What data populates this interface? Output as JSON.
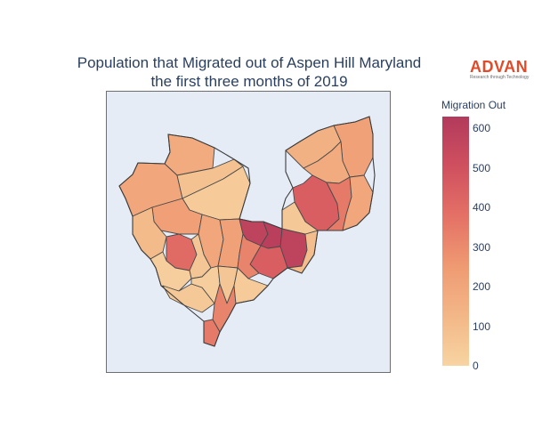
{
  "chart": {
    "title_line1": "Population that Migrated out of Aspen Hill Maryland",
    "title_line2": "the first three months of 2019"
  },
  "logo": {
    "name": "ADVAN",
    "tagline": "Research through Technology"
  },
  "colorbar": {
    "title": "Migration Out",
    "ticks": [
      "0",
      "100",
      "200",
      "300",
      "400",
      "500",
      "600"
    ],
    "range": [
      0,
      630
    ],
    "colors": [
      "#f7d4a2",
      "#f3b787",
      "#ef9a72",
      "#e47166",
      "#cf505f",
      "#b23a5c"
    ]
  },
  "chart_data": {
    "type": "choropleth",
    "title": "Population that Migrated out of Aspen Hill Maryland the first three months of 2019",
    "colorbar_title": "Migration Out",
    "value_range": [
      0,
      630
    ],
    "regions": [
      {
        "id": "nw-1",
        "value": 180
      },
      {
        "id": "nw-2",
        "value": 200
      },
      {
        "id": "north-mid",
        "value": 80
      },
      {
        "id": "center-n",
        "value": 40
      },
      {
        "id": "west-1",
        "value": 230
      },
      {
        "id": "west-2",
        "value": 110
      },
      {
        "id": "w-center",
        "value": 200
      },
      {
        "id": "west-3",
        "value": 400
      },
      {
        "id": "center",
        "value": 60
      },
      {
        "id": "center-2",
        "value": 30
      },
      {
        "id": "c-mid",
        "value": 220
      },
      {
        "id": "c-core-1",
        "value": 580
      },
      {
        "id": "c-core-2",
        "value": 600
      },
      {
        "id": "c-core-3",
        "value": 580
      },
      {
        "id": "c-east",
        "value": 450
      },
      {
        "id": "c-south",
        "value": 320
      },
      {
        "id": "c-se",
        "value": 100
      },
      {
        "id": "ne-1",
        "value": 150
      },
      {
        "id": "ne-2",
        "value": 220
      },
      {
        "id": "ne-3",
        "value": 180
      },
      {
        "id": "e-1",
        "value": 450
      },
      {
        "id": "e-2",
        "value": 350
      },
      {
        "id": "e-3",
        "value": 50
      },
      {
        "id": "e-4",
        "value": 200
      },
      {
        "id": "s-1",
        "value": 50
      },
      {
        "id": "s-2",
        "value": 30
      },
      {
        "id": "s-3",
        "value": 60
      },
      {
        "id": "s-4",
        "value": 320
      },
      {
        "id": "s-5",
        "value": 350
      },
      {
        "id": "s-6",
        "value": 40
      }
    ]
  }
}
